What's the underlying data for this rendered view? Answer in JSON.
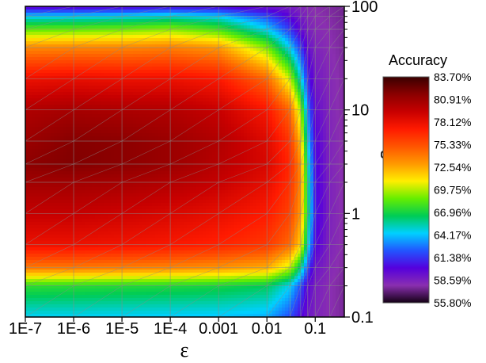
{
  "chart_data": {
    "type": "heatmap",
    "title": "",
    "xlabel": "ε",
    "ylabel": "s",
    "x_scale": "log",
    "y_scale": "log",
    "xlim": [
      1e-07,
      0.4
    ],
    "ylim": [
      0.1,
      100
    ],
    "x_ticks": [
      {
        "value": 1e-07,
        "label": "1E-7"
      },
      {
        "value": 1e-06,
        "label": "1E-6"
      },
      {
        "value": 1e-05,
        "label": "1E-5"
      },
      {
        "value": 0.0001,
        "label": "1E-4"
      },
      {
        "value": 0.001,
        "label": "0.001"
      },
      {
        "value": 0.01,
        "label": "0.01"
      },
      {
        "value": 0.1,
        "label": "0.1"
      }
    ],
    "y_ticks": [
      {
        "value": 0.1,
        "label": "0.1"
      },
      {
        "value": 1,
        "label": "1"
      },
      {
        "value": 10,
        "label": "10"
      },
      {
        "value": 100,
        "label": "100"
      }
    ],
    "colorbar": {
      "title": "Accuracy",
      "min": 55.8,
      "max": 83.7,
      "unit": "%",
      "labels": [
        "83.70%",
        "80.91%",
        "78.12%",
        "75.33%",
        "72.54%",
        "69.75%",
        "66.96%",
        "64.17%",
        "61.38%",
        "58.59%",
        "55.80%"
      ],
      "colors": [
        "#3a0000",
        "#8b0000",
        "#c80000",
        "#ff1a00",
        "#ff5500",
        "#ff9900",
        "#ffee00",
        "#66ee00",
        "#00cc55",
        "#00d0ff",
        "#2255ff",
        "#5500dd",
        "#8a2fb0",
        "#140014"
      ]
    },
    "x": [
      1e-07,
      1e-06,
      1e-05,
      0.0001,
      0.001,
      0.01,
      0.03,
      0.05,
      0.07,
      0.1,
      0.2,
      0.4
    ],
    "y": [
      0.1,
      0.2,
      0.3,
      0.5,
      1,
      2,
      3,
      5,
      10,
      20,
      40,
      60,
      80,
      100
    ],
    "z": [
      [
        64.5,
        64.5,
        64.4,
        64.3,
        64.2,
        63.8,
        62.0,
        60.3,
        59.2,
        58.5,
        58.0,
        57.6
      ],
      [
        67.5,
        67.4,
        67.3,
        67.2,
        67.0,
        66.5,
        64.5,
        62.0,
        59.8,
        58.7,
        58.0,
        57.6
      ],
      [
        74.0,
        74.0,
        73.8,
        73.6,
        73.2,
        72.5,
        70.0,
        66.0,
        62.0,
        59.2,
        58.2,
        57.7
      ],
      [
        78.0,
        78.0,
        77.8,
        77.5,
        77.0,
        76.2,
        74.5,
        71.5,
        65.0,
        60.3,
        58.4,
        57.8
      ],
      [
        79.5,
        79.5,
        79.2,
        78.8,
        78.2,
        77.3,
        75.8,
        73.0,
        66.5,
        60.8,
        58.5,
        57.8
      ],
      [
        80.8,
        80.8,
        80.6,
        80.2,
        79.5,
        78.3,
        76.5,
        73.5,
        66.0,
        60.6,
        58.5,
        57.8
      ],
      [
        81.5,
        81.8,
        81.5,
        81.0,
        80.0,
        78.8,
        76.8,
        73.3,
        65.5,
        60.5,
        58.4,
        57.8
      ],
      [
        81.0,
        81.7,
        81.5,
        81.0,
        80.2,
        78.6,
        76.3,
        72.0,
        64.5,
        60.2,
        58.4,
        57.8
      ],
      [
        80.3,
        80.6,
        80.4,
        80.2,
        79.4,
        77.5,
        74.5,
        69.5,
        63.0,
        59.6,
        58.3,
        57.7
      ],
      [
        78.0,
        78.2,
        78.0,
        78.0,
        77.4,
        74.5,
        70.0,
        65.0,
        61.0,
        59.0,
        58.2,
        57.7
      ],
      [
        73.5,
        73.6,
        73.6,
        73.8,
        73.0,
        69.0,
        64.5,
        61.5,
        59.5,
        58.5,
        58.0,
        57.6
      ],
      [
        68.5,
        68.6,
        68.8,
        69.2,
        68.0,
        64.5,
        61.5,
        59.6,
        58.7,
        58.2,
        57.9,
        57.6
      ],
      [
        64.5,
        64.6,
        64.8,
        65.2,
        64.5,
        62.0,
        60.0,
        58.9,
        58.4,
        58.0,
        57.8,
        57.5
      ],
      [
        59.5,
        59.6,
        59.8,
        60.2,
        60.0,
        59.0,
        58.6,
        58.3,
        58.1,
        57.9,
        57.7,
        57.5
      ]
    ]
  }
}
